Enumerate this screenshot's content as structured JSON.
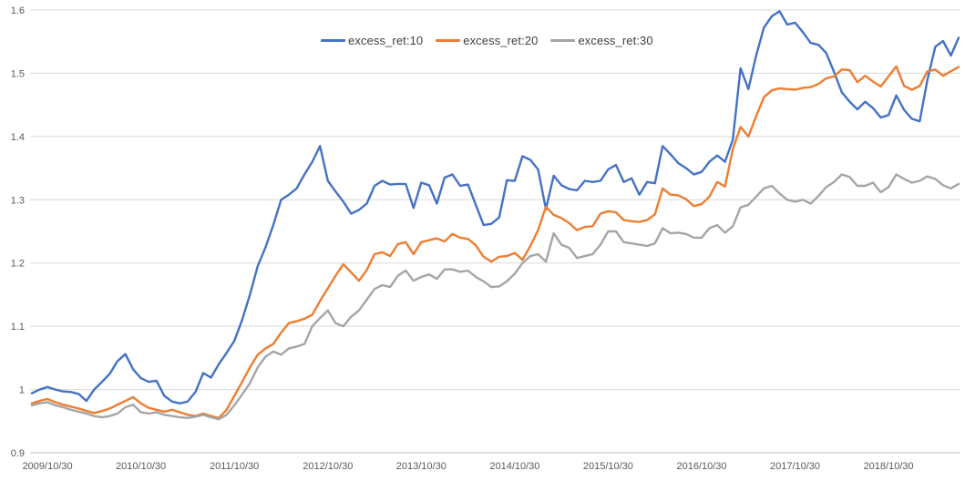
{
  "chart_data": {
    "type": "line",
    "title": "",
    "legend_position": "top-center",
    "grid": true,
    "background_color": "#ffffff",
    "gridline_color": "#d9d9d9",
    "axis_line_color": "#bfbfbf",
    "axis_label_color": "#595959",
    "legend_text_color": "#3f3f3f",
    "y_axis": {
      "min": 0.9,
      "max": 1.6,
      "step": 0.1,
      "tick_labels": [
        "0.9",
        "1",
        "1.1",
        "1.2",
        "1.3",
        "1.4",
        "1.5",
        "1.6"
      ]
    },
    "x_axis": {
      "tick_labels": [
        "2009/10/30",
        "2010/10/30",
        "2011/10/30",
        "2012/10/30",
        "2013/10/30",
        "2014/10/30",
        "2015/10/30",
        "2016/10/30",
        "2017/10/30",
        "2018/10/30"
      ],
      "first_label_index": 2,
      "label_every": 12,
      "points_total": 120
    },
    "series": [
      {
        "name": "excess_ret:10",
        "color": "#4472c4",
        "values": [
          0.994,
          1.0,
          1.004,
          1.0,
          0.997,
          0.996,
          0.993,
          0.982,
          1.0,
          1.012,
          1.025,
          1.045,
          1.056,
          1.032,
          1.018,
          1.012,
          1.014,
          0.99,
          0.981,
          0.978,
          0.981,
          0.996,
          1.026,
          1.019,
          1.04,
          1.058,
          1.077,
          1.11,
          1.15,
          1.195,
          1.225,
          1.26,
          1.3,
          1.308,
          1.318,
          1.34,
          1.36,
          1.385,
          1.33,
          1.313,
          1.297,
          1.278,
          1.284,
          1.294,
          1.322,
          1.33,
          1.324,
          1.325,
          1.325,
          1.287,
          1.327,
          1.323,
          1.294,
          1.335,
          1.34,
          1.322,
          1.324,
          1.292,
          1.26,
          1.262,
          1.272,
          1.331,
          1.33,
          1.369,
          1.363,
          1.348,
          1.285,
          1.338,
          1.323,
          1.317,
          1.315,
          1.33,
          1.328,
          1.33,
          1.348,
          1.355,
          1.328,
          1.334,
          1.308,
          1.328,
          1.326,
          1.385,
          1.372,
          1.358,
          1.35,
          1.34,
          1.344,
          1.36,
          1.37,
          1.36,
          1.395,
          1.508,
          1.475,
          1.528,
          1.572,
          1.59,
          1.598,
          1.577,
          1.58,
          1.565,
          1.548,
          1.545,
          1.532,
          1.502,
          1.47,
          1.455,
          1.443,
          1.455,
          1.445,
          1.43,
          1.434,
          1.465,
          1.442,
          1.428,
          1.424,
          1.49,
          1.542,
          1.551,
          1.528,
          1.556
        ]
      },
      {
        "name": "excess_ret:20",
        "color": "#ed7d31",
        "values": [
          0.978,
          0.982,
          0.985,
          0.98,
          0.976,
          0.973,
          0.97,
          0.966,
          0.963,
          0.966,
          0.97,
          0.976,
          0.982,
          0.988,
          0.978,
          0.971,
          0.968,
          0.965,
          0.968,
          0.964,
          0.96,
          0.958,
          0.962,
          0.958,
          0.955,
          0.968,
          0.99,
          1.012,
          1.035,
          1.055,
          1.065,
          1.072,
          1.09,
          1.105,
          1.108,
          1.112,
          1.118,
          1.14,
          1.16,
          1.18,
          1.198,
          1.185,
          1.172,
          1.189,
          1.214,
          1.217,
          1.211,
          1.23,
          1.233,
          1.214,
          1.233,
          1.236,
          1.239,
          1.234,
          1.246,
          1.24,
          1.238,
          1.228,
          1.21,
          1.202,
          1.21,
          1.211,
          1.216,
          1.205,
          1.227,
          1.252,
          1.289,
          1.276,
          1.271,
          1.263,
          1.252,
          1.257,
          1.258,
          1.278,
          1.282,
          1.28,
          1.268,
          1.266,
          1.265,
          1.268,
          1.277,
          1.318,
          1.308,
          1.307,
          1.301,
          1.29,
          1.293,
          1.305,
          1.328,
          1.321,
          1.38,
          1.415,
          1.4,
          1.432,
          1.462,
          1.473,
          1.476,
          1.475,
          1.474,
          1.477,
          1.478,
          1.483,
          1.492,
          1.495,
          1.506,
          1.505,
          1.486,
          1.496,
          1.487,
          1.479,
          1.495,
          1.511,
          1.48,
          1.474,
          1.48,
          1.503,
          1.506,
          1.496,
          1.503,
          1.51
        ]
      },
      {
        "name": "excess_ret:30",
        "color": "#a5a5a5",
        "values": [
          0.975,
          0.978,
          0.98,
          0.975,
          0.972,
          0.968,
          0.965,
          0.962,
          0.958,
          0.956,
          0.958,
          0.962,
          0.972,
          0.976,
          0.964,
          0.962,
          0.964,
          0.96,
          0.958,
          0.956,
          0.955,
          0.957,
          0.96,
          0.956,
          0.953,
          0.96,
          0.975,
          0.992,
          1.01,
          1.035,
          1.052,
          1.06,
          1.055,
          1.065,
          1.068,
          1.072,
          1.1,
          1.113,
          1.125,
          1.105,
          1.1,
          1.115,
          1.125,
          1.142,
          1.159,
          1.165,
          1.162,
          1.18,
          1.188,
          1.172,
          1.178,
          1.182,
          1.175,
          1.19,
          1.19,
          1.186,
          1.188,
          1.178,
          1.171,
          1.162,
          1.163,
          1.171,
          1.183,
          1.2,
          1.211,
          1.214,
          1.202,
          1.247,
          1.229,
          1.224,
          1.208,
          1.211,
          1.214,
          1.229,
          1.25,
          1.25,
          1.233,
          1.231,
          1.229,
          1.227,
          1.231,
          1.255,
          1.247,
          1.248,
          1.246,
          1.24,
          1.24,
          1.255,
          1.26,
          1.248,
          1.258,
          1.288,
          1.292,
          1.305,
          1.318,
          1.322,
          1.31,
          1.3,
          1.297,
          1.3,
          1.294,
          1.306,
          1.32,
          1.328,
          1.34,
          1.336,
          1.322,
          1.322,
          1.327,
          1.312,
          1.32,
          1.34,
          1.333,
          1.327,
          1.33,
          1.337,
          1.333,
          1.323,
          1.318,
          1.325
        ]
      }
    ]
  }
}
